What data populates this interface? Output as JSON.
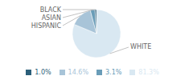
{
  "chart_data": {
    "type": "pie",
    "categories": [
      "WHITE",
      "HISPANIC",
      "ASIAN",
      "BLACK"
    ],
    "values": [
      81.3,
      14.6,
      3.1,
      1.0
    ],
    "value_labels": [
      "81.3%",
      "14.6%",
      "3.1%",
      "1.0%"
    ],
    "colors": [
      "#d9e8f2",
      "#a8c4d8",
      "#6a9db8",
      "#2c5f7a"
    ],
    "legend": "bottom"
  }
}
